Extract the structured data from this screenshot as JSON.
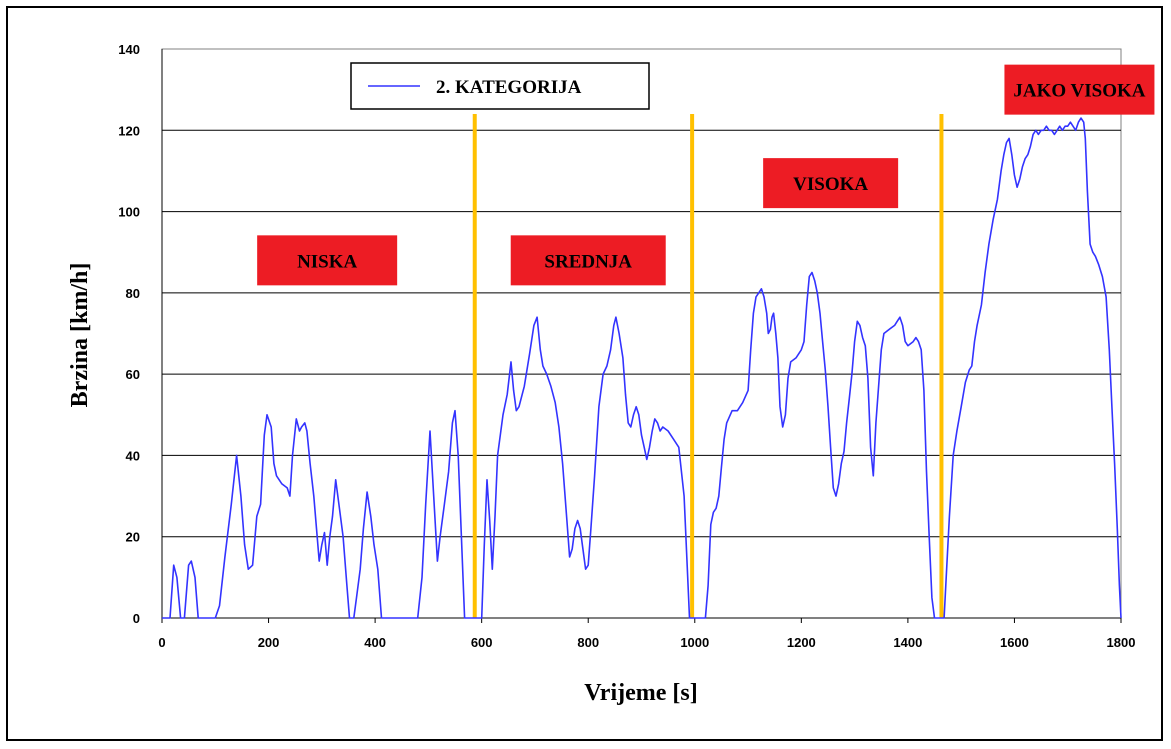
{
  "chart_data": {
    "type": "line",
    "xlabel": "Vrijeme [s]",
    "ylabel": "Brzina [km/h]",
    "xlim": [
      0,
      1800
    ],
    "ylim": [
      0,
      140
    ],
    "x_ticks": [
      0,
      200,
      400,
      600,
      800,
      1000,
      1200,
      1400,
      1600,
      1800
    ],
    "y_ticks": [
      0,
      20,
      40,
      60,
      80,
      100,
      120,
      140
    ],
    "grid": "horizontal",
    "legend_position": "top-left",
    "series": [
      {
        "name": "2. KATEGORIJA",
        "color": "#3333ff",
        "points": [
          [
            0,
            0
          ],
          [
            15,
            0
          ],
          [
            22,
            13
          ],
          [
            28,
            10
          ],
          [
            35,
            0
          ],
          [
            42,
            0
          ],
          [
            50,
            13
          ],
          [
            55,
            14
          ],
          [
            62,
            10
          ],
          [
            68,
            0
          ],
          [
            100,
            0
          ],
          [
            108,
            3
          ],
          [
            118,
            15
          ],
          [
            130,
            28
          ],
          [
            140,
            40
          ],
          [
            148,
            30
          ],
          [
            155,
            18
          ],
          [
            162,
            12
          ],
          [
            170,
            13
          ],
          [
            178,
            25
          ],
          [
            185,
            28
          ],
          [
            192,
            45
          ],
          [
            197,
            50
          ],
          [
            205,
            47
          ],
          [
            210,
            38
          ],
          [
            215,
            35
          ],
          [
            225,
            33
          ],
          [
            235,
            32
          ],
          [
            240,
            30
          ],
          [
            245,
            40
          ],
          [
            252,
            49
          ],
          [
            258,
            46
          ],
          [
            262,
            47
          ],
          [
            268,
            48
          ],
          [
            272,
            46
          ],
          [
            278,
            38
          ],
          [
            285,
            30
          ],
          [
            290,
            22
          ],
          [
            295,
            14
          ],
          [
            300,
            18
          ],
          [
            305,
            21
          ],
          [
            310,
            13
          ],
          [
            315,
            20
          ],
          [
            320,
            25
          ],
          [
            326,
            34
          ],
          [
            332,
            28
          ],
          [
            340,
            20
          ],
          [
            347,
            8
          ],
          [
            352,
            0
          ],
          [
            360,
            0
          ],
          [
            365,
            5
          ],
          [
            372,
            12
          ],
          [
            378,
            22
          ],
          [
            385,
            31
          ],
          [
            392,
            25
          ],
          [
            398,
            18
          ],
          [
            405,
            12
          ],
          [
            412,
            0
          ],
          [
            480,
            0
          ],
          [
            488,
            10
          ],
          [
            495,
            28
          ],
          [
            503,
            46
          ],
          [
            510,
            30
          ],
          [
            517,
            14
          ],
          [
            522,
            20
          ],
          [
            530,
            28
          ],
          [
            538,
            36
          ],
          [
            545,
            48
          ],
          [
            550,
            51
          ],
          [
            556,
            40
          ],
          [
            562,
            20
          ],
          [
            568,
            0
          ],
          [
            600,
            0
          ],
          [
            605,
            18
          ],
          [
            610,
            34
          ],
          [
            615,
            24
          ],
          [
            620,
            12
          ],
          [
            625,
            25
          ],
          [
            630,
            40
          ],
          [
            640,
            50
          ],
          [
            648,
            55
          ],
          [
            655,
            63
          ],
          [
            660,
            56
          ],
          [
            665,
            51
          ],
          [
            670,
            52
          ],
          [
            680,
            57
          ],
          [
            690,
            65
          ],
          [
            698,
            72
          ],
          [
            704,
            74
          ],
          [
            710,
            66
          ],
          [
            715,
            62
          ],
          [
            722,
            60
          ],
          [
            730,
            57
          ],
          [
            738,
            53
          ],
          [
            745,
            47
          ],
          [
            752,
            38
          ],
          [
            760,
            24
          ],
          [
            765,
            15
          ],
          [
            770,
            17
          ],
          [
            775,
            22
          ],
          [
            780,
            24
          ],
          [
            785,
            22
          ],
          [
            790,
            17
          ],
          [
            795,
            12
          ],
          [
            800,
            13
          ],
          [
            805,
            22
          ],
          [
            812,
            35
          ],
          [
            820,
            52
          ],
          [
            828,
            60
          ],
          [
            835,
            62
          ],
          [
            842,
            66
          ],
          [
            848,
            72
          ],
          [
            852,
            74
          ],
          [
            858,
            70
          ],
          [
            865,
            64
          ],
          [
            870,
            55
          ],
          [
            875,
            48
          ],
          [
            880,
            47
          ],
          [
            885,
            50
          ],
          [
            890,
            52
          ],
          [
            895,
            50
          ],
          [
            900,
            45
          ],
          [
            905,
            42
          ],
          [
            910,
            39
          ],
          [
            915,
            42
          ],
          [
            920,
            46
          ],
          [
            925,
            49
          ],
          [
            930,
            48
          ],
          [
            935,
            46
          ],
          [
            940,
            47
          ],
          [
            950,
            46
          ],
          [
            960,
            44
          ],
          [
            970,
            42
          ],
          [
            980,
            30
          ],
          [
            985,
            15
          ],
          [
            990,
            0
          ],
          [
            1020,
            0
          ],
          [
            1025,
            8
          ],
          [
            1030,
            23
          ],
          [
            1035,
            26
          ],
          [
            1040,
            27
          ],
          [
            1045,
            30
          ],
          [
            1050,
            37
          ],
          [
            1055,
            44
          ],
          [
            1060,
            48
          ],
          [
            1070,
            51
          ],
          [
            1080,
            51
          ],
          [
            1090,
            53
          ],
          [
            1100,
            56
          ],
          [
            1105,
            66
          ],
          [
            1110,
            75
          ],
          [
            1115,
            79
          ],
          [
            1120,
            80
          ],
          [
            1125,
            81
          ],
          [
            1130,
            79
          ],
          [
            1135,
            75
          ],
          [
            1138,
            70
          ],
          [
            1142,
            71
          ],
          [
            1145,
            74
          ],
          [
            1148,
            75
          ],
          [
            1152,
            70
          ],
          [
            1156,
            64
          ],
          [
            1160,
            52
          ],
          [
            1165,
            47
          ],
          [
            1170,
            50
          ],
          [
            1175,
            59
          ],
          [
            1180,
            63
          ],
          [
            1190,
            64
          ],
          [
            1200,
            66
          ],
          [
            1205,
            68
          ],
          [
            1210,
            77
          ],
          [
            1215,
            84
          ],
          [
            1220,
            85
          ],
          [
            1225,
            83
          ],
          [
            1230,
            80
          ],
          [
            1235,
            75
          ],
          [
            1240,
            68
          ],
          [
            1245,
            61
          ],
          [
            1250,
            52
          ],
          [
            1255,
            42
          ],
          [
            1260,
            32
          ],
          [
            1265,
            30
          ],
          [
            1270,
            33
          ],
          [
            1275,
            38
          ],
          [
            1280,
            41
          ],
          [
            1285,
            48
          ],
          [
            1290,
            54
          ],
          [
            1295,
            60
          ],
          [
            1300,
            68
          ],
          [
            1305,
            73
          ],
          [
            1310,
            72
          ],
          [
            1315,
            69
          ],
          [
            1320,
            67
          ],
          [
            1325,
            59
          ],
          [
            1330,
            42
          ],
          [
            1335,
            35
          ],
          [
            1340,
            48
          ],
          [
            1345,
            57
          ],
          [
            1350,
            66
          ],
          [
            1355,
            70
          ],
          [
            1365,
            71
          ],
          [
            1375,
            72
          ],
          [
            1380,
            73
          ],
          [
            1385,
            74
          ],
          [
            1390,
            72
          ],
          [
            1395,
            68
          ],
          [
            1400,
            67
          ],
          [
            1410,
            68
          ],
          [
            1415,
            69
          ],
          [
            1420,
            68
          ],
          [
            1425,
            66
          ],
          [
            1430,
            56
          ],
          [
            1435,
            36
          ],
          [
            1440,
            20
          ],
          [
            1445,
            5
          ],
          [
            1450,
            0
          ],
          [
            1468,
            0
          ],
          [
            1472,
            10
          ],
          [
            1478,
            25
          ],
          [
            1485,
            40
          ],
          [
            1492,
            46
          ],
          [
            1500,
            52
          ],
          [
            1508,
            58
          ],
          [
            1515,
            61
          ],
          [
            1520,
            62
          ],
          [
            1525,
            68
          ],
          [
            1530,
            72
          ],
          [
            1538,
            77
          ],
          [
            1545,
            85
          ],
          [
            1552,
            92
          ],
          [
            1560,
            98
          ],
          [
            1568,
            103
          ],
          [
            1575,
            110
          ],
          [
            1580,
            114
          ],
          [
            1585,
            117
          ],
          [
            1590,
            118
          ],
          [
            1595,
            114
          ],
          [
            1600,
            109
          ],
          [
            1605,
            106
          ],
          [
            1610,
            108
          ],
          [
            1615,
            111
          ],
          [
            1620,
            113
          ],
          [
            1625,
            114
          ],
          [
            1630,
            116
          ],
          [
            1635,
            119
          ],
          [
            1640,
            120
          ],
          [
            1645,
            119
          ],
          [
            1650,
            120
          ],
          [
            1655,
            120
          ],
          [
            1660,
            121
          ],
          [
            1665,
            120
          ],
          [
            1670,
            120
          ],
          [
            1675,
            119
          ],
          [
            1680,
            120
          ],
          [
            1685,
            121
          ],
          [
            1690,
            120
          ],
          [
            1695,
            121
          ],
          [
            1700,
            121
          ],
          [
            1705,
            122
          ],
          [
            1710,
            121
          ],
          [
            1715,
            120
          ],
          [
            1720,
            122
          ],
          [
            1725,
            123
          ],
          [
            1730,
            122
          ],
          [
            1733,
            118
          ],
          [
            1737,
            105
          ],
          [
            1742,
            92
          ],
          [
            1747,
            90
          ],
          [
            1752,
            89
          ],
          [
            1758,
            87
          ],
          [
            1765,
            84
          ],
          [
            1772,
            79
          ],
          [
            1778,
            66
          ],
          [
            1783,
            52
          ],
          [
            1788,
            38
          ],
          [
            1793,
            22
          ],
          [
            1797,
            8
          ],
          [
            1800,
            0
          ]
        ]
      }
    ],
    "vlines": [
      {
        "x": 587,
        "color": "#ffc000"
      },
      {
        "x": 995,
        "color": "#ffc000"
      },
      {
        "x": 1463,
        "color": "#ffc000"
      }
    ],
    "annotations": [
      {
        "text": "NISKA",
        "x": 310,
        "y": 88
      },
      {
        "text": "SREDNJA",
        "x": 800,
        "y": 88
      },
      {
        "text": "VISOKA",
        "x": 1255,
        "y": 107
      },
      {
        "text": "JAKO VISOKA",
        "x": 1722,
        "y": 130
      }
    ],
    "annotation_style": {
      "box_color": "#ed1c24",
      "text_color": "#000000"
    },
    "plot_background": "#ffffff",
    "grid_color": "#000000"
  }
}
